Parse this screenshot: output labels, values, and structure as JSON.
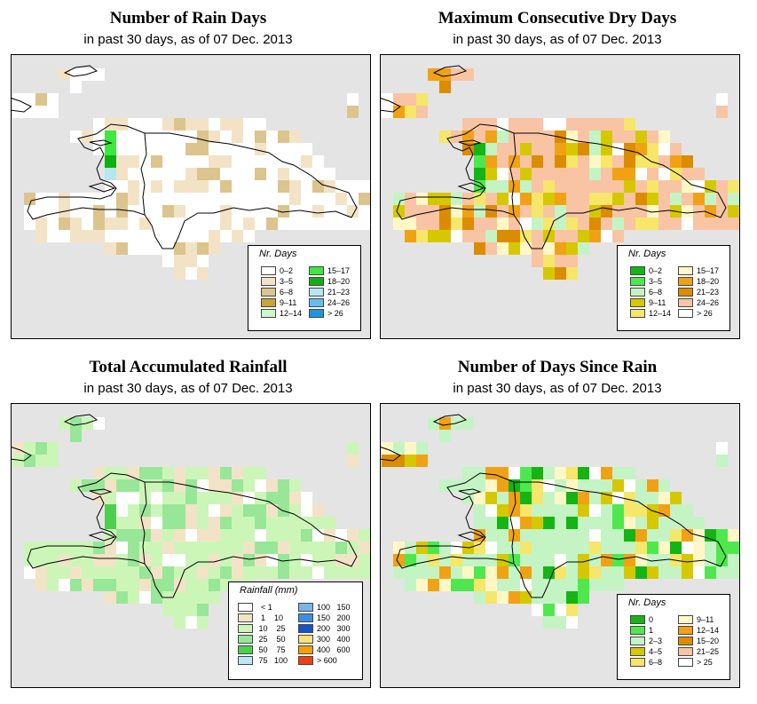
{
  "panels": [
    {
      "id": "rain-days",
      "title": "Number of Rain Days",
      "subtitle": "in past 30 days, as of  07 Dec. 2013",
      "legend": {
        "title": "Nr. Days",
        "items": [
          {
            "label": "0–2",
            "color": "#ffffff"
          },
          {
            "label": "3–5",
            "color": "#f3e3c6"
          },
          {
            "label": "6–8",
            "color": "#dcc48e"
          },
          {
            "label": "9–11",
            "color": "#c8a43a"
          },
          {
            "label": "12–14",
            "color": "#ccf6cc"
          },
          {
            "label": "15–17",
            "color": "#3ee83e"
          },
          {
            "label": "18–20",
            "color": "#10b010"
          },
          {
            "label": "21–23",
            "color": "#b6e6f2"
          },
          {
            "label": "24–26",
            "color": "#62c0ee"
          },
          {
            "label": "> 26",
            "color": "#1e96dc"
          }
        ]
      }
    },
    {
      "id": "dry-days",
      "title": "Maximum Consecutive Dry Days",
      "subtitle": "in past 30 days, as of  07 Dec. 2013",
      "legend": {
        "title": "Nr. Days",
        "items": [
          {
            "label": "0–2",
            "color": "#14b414"
          },
          {
            "label": "3–5",
            "color": "#4ee84e"
          },
          {
            "label": "6–8",
            "color": "#c4f4c4"
          },
          {
            "label": "9–11",
            "color": "#d6c800"
          },
          {
            "label": "12–14",
            "color": "#f6e66a"
          },
          {
            "label": "15–17",
            "color": "#fff8c6"
          },
          {
            "label": "18–20",
            "color": "#f0a214"
          },
          {
            "label": "21–23",
            "color": "#dc8c00"
          },
          {
            "label": "24–26",
            "color": "#f8c4a4"
          },
          {
            "label": "> 26",
            "color": "#ffffff"
          }
        ]
      }
    },
    {
      "id": "rainfall",
      "title": "Total Accumulated Rainfall",
      "subtitle": "in past 30 days, as of  07 Dec. 2013",
      "legend": {
        "title": "Rainfall (mm)",
        "items": [
          {
            "label": "  < 1",
            "color": "#ffffff"
          },
          {
            "label": "  1    10",
            "color": "#f3e3c6"
          },
          {
            "label": " 10    25",
            "color": "#ccf6b8"
          },
          {
            "label": " 25    50",
            "color": "#98e698"
          },
          {
            "label": " 50    75",
            "color": "#4ed04e"
          },
          {
            "label": " 75   100",
            "color": "#bce8f6"
          },
          {
            "label": "100   150",
            "color": "#76b6e8"
          },
          {
            "label": "150   200",
            "color": "#3c8ee4"
          },
          {
            "label": "200   300",
            "color": "#1454cc"
          },
          {
            "label": "300   400",
            "color": "#fae27a"
          },
          {
            "label": "400   600",
            "color": "#f4a000"
          },
          {
            "label": "> 600",
            "color": "#f04010"
          }
        ]
      }
    },
    {
      "id": "since-rain",
      "title": "Number of Days Since Rain",
      "subtitle": "in past 30 days, as of  07 Dec. 2013",
      "legend": {
        "title": "Nr. Days",
        "items": [
          {
            "label": "0",
            "color": "#14b414"
          },
          {
            "label": "1",
            "color": "#4ee84e"
          },
          {
            "label": "2–3",
            "color": "#c4f4c4"
          },
          {
            "label": "4–5",
            "color": "#d6c800"
          },
          {
            "label": "6–8",
            "color": "#f6e66a"
          },
          {
            "label": "9–11",
            "color": "#fff8c6"
          },
          {
            "label": "12–14",
            "color": "#f0a214"
          },
          {
            "label": "15–20",
            "color": "#dc8c00"
          },
          {
            "label": "21–25",
            "color": "#f8c4a4"
          },
          {
            "label": "> 25",
            "color": "#ffffff"
          }
        ]
      }
    }
  ]
}
